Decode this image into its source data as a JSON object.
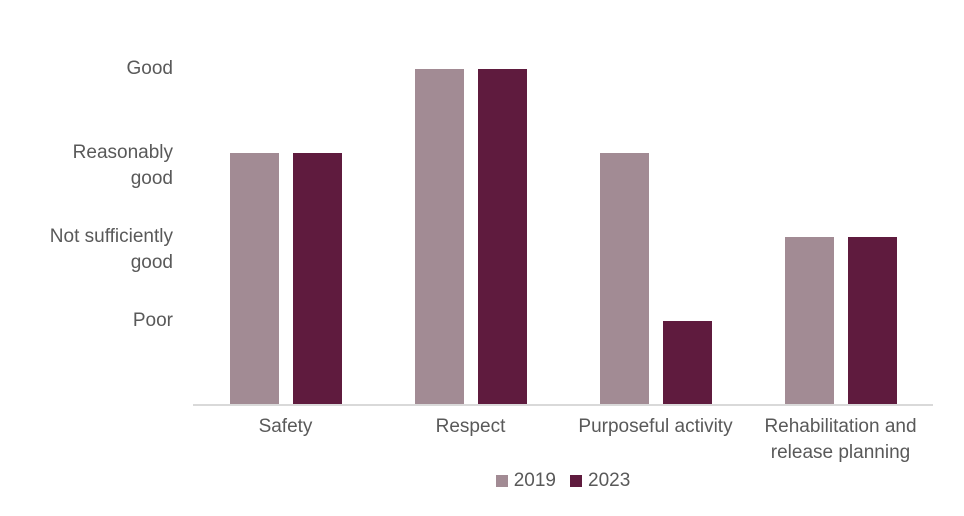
{
  "chart_data": {
    "type": "bar",
    "title": "",
    "categories": [
      "Safety",
      "Respect",
      "Purposeful activity",
      "Rehabilitation and release planning"
    ],
    "series": [
      {
        "name": "2019",
        "color": "#a28b94",
        "values": [
          3,
          4,
          3,
          2
        ]
      },
      {
        "name": "2023",
        "color": "#5f1b3e",
        "values": [
          3,
          4,
          1,
          2
        ]
      }
    ],
    "y_ticks": [
      {
        "value": 4,
        "lines": [
          "Good"
        ]
      },
      {
        "value": 3,
        "lines": [
          "Reasonably",
          "good"
        ]
      },
      {
        "value": 2,
        "lines": [
          "Not sufficiently",
          "good"
        ]
      },
      {
        "value": 1,
        "lines": [
          "Poor"
        ]
      }
    ],
    "ylim": [
      0,
      4
    ],
    "grid": false,
    "legend_position": "bottom-center",
    "colors": {
      "axis_line": "#d9d9d9",
      "text": "#595959",
      "background": "#ffffff"
    }
  }
}
